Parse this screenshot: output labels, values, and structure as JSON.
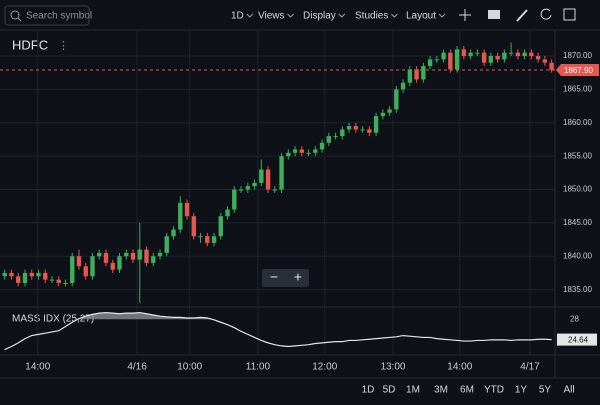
{
  "toolbar": {
    "search_placeholder": "Search symbol",
    "menus": [
      "1D",
      "Views",
      "Display",
      "Studies",
      "Layout"
    ]
  },
  "symbol": "HDFC",
  "zoom_buttons": [
    "−",
    "+"
  ],
  "ranges": [
    "1D",
    "5D",
    "1M",
    "3M",
    "6M",
    "YTD",
    "1Y",
    "5Y",
    "All"
  ],
  "chart_data": {
    "type": "candlestick",
    "ohlc": [
      [
        1837,
        1838,
        1836.5,
        1837.5
      ],
      [
        1837.5,
        1838,
        1836.5,
        1837
      ],
      [
        1837,
        1837.5,
        1835.5,
        1836
      ],
      [
        1836,
        1838,
        1835.5,
        1837.5
      ],
      [
        1837.5,
        1838,
        1836.5,
        1837
      ],
      [
        1837,
        1838,
        1836.5,
        1837.5
      ],
      [
        1837.5,
        1838,
        1836,
        1836.5
      ],
      [
        1836.5,
        1837,
        1836,
        1836.5
      ],
      [
        1836.5,
        1837,
        1835.5,
        1836
      ],
      [
        1836,
        1836.5,
        1835.5,
        1836
      ],
      [
        1836,
        1840.5,
        1835.5,
        1840
      ],
      [
        1840,
        1841,
        1838,
        1838.5
      ],
      [
        1838.5,
        1839,
        1836.5,
        1837
      ],
      [
        1837,
        1840.5,
        1836.5,
        1840
      ],
      [
        1840,
        1841,
        1839.5,
        1840.5
      ],
      [
        1840.5,
        1841,
        1838.5,
        1839
      ],
      [
        1839,
        1839.5,
        1837.5,
        1838
      ],
      [
        1838,
        1840.5,
        1837.5,
        1840
      ],
      [
        1840,
        1841,
        1839.5,
        1840.5
      ],
      [
        1840.5,
        1841,
        1839,
        1839.5
      ],
      [
        1839.5,
        1845,
        1833,
        1841
      ],
      [
        1841,
        1841.5,
        1838.5,
        1839
      ],
      [
        1839,
        1840.5,
        1838.5,
        1840
      ],
      [
        1840,
        1841,
        1839.5,
        1840.5
      ],
      [
        1840.5,
        1843.5,
        1840,
        1843
      ],
      [
        1843,
        1844.5,
        1842.5,
        1844
      ],
      [
        1844,
        1849,
        1843.5,
        1848
      ],
      [
        1848,
        1848.5,
        1845.5,
        1846
      ],
      [
        1846,
        1846.5,
        1842.5,
        1843
      ],
      [
        1843,
        1843.5,
        1842,
        1843
      ],
      [
        1843,
        1843.5,
        1841.5,
        1842
      ],
      [
        1842,
        1843.5,
        1841.5,
        1843
      ],
      [
        1843,
        1846.5,
        1842.5,
        1846
      ],
      [
        1846,
        1847.5,
        1845.5,
        1847
      ],
      [
        1847,
        1850.5,
        1846.5,
        1850
      ],
      [
        1850,
        1850.5,
        1849.5,
        1850
      ],
      [
        1850,
        1851,
        1849.5,
        1850.5
      ],
      [
        1850.5,
        1851.5,
        1850,
        1851
      ],
      [
        1851,
        1854.5,
        1850.5,
        1853
      ],
      [
        1853,
        1853.5,
        1849.5,
        1850
      ],
      [
        1850,
        1850.5,
        1849.5,
        1850
      ],
      [
        1850,
        1855.5,
        1849.5,
        1855
      ],
      [
        1855,
        1856,
        1854.5,
        1855.5
      ],
      [
        1855.5,
        1856.5,
        1855,
        1856
      ],
      [
        1856,
        1856.5,
        1855,
        1855.5
      ],
      [
        1855.5,
        1856,
        1855,
        1855.5
      ],
      [
        1855.5,
        1856.5,
        1855,
        1856
      ],
      [
        1856,
        1857.5,
        1855.5,
        1857
      ],
      [
        1857,
        1858.5,
        1856.5,
        1858
      ],
      [
        1858,
        1858.5,
        1857.5,
        1858
      ],
      [
        1858,
        1859.5,
        1857.5,
        1859
      ],
      [
        1859,
        1860,
        1858.5,
        1859.5
      ],
      [
        1859.5,
        1860,
        1858.5,
        1859
      ],
      [
        1859,
        1859.5,
        1858.5,
        1859
      ],
      [
        1859,
        1859.5,
        1858,
        1858.5
      ],
      [
        1858.5,
        1861.5,
        1858,
        1861
      ],
      [
        1861,
        1862,
        1860.5,
        1861.5
      ],
      [
        1861.5,
        1862.5,
        1861,
        1862
      ],
      [
        1862,
        1865.5,
        1861.5,
        1865
      ],
      [
        1865,
        1866.5,
        1864.5,
        1866
      ],
      [
        1866,
        1868.5,
        1865.5,
        1868
      ],
      [
        1868,
        1868.5,
        1866,
        1866.5
      ],
      [
        1866.5,
        1869,
        1866,
        1868.5
      ],
      [
        1868.5,
        1870,
        1868,
        1869.5
      ],
      [
        1869.5,
        1870,
        1869,
        1869.5
      ],
      [
        1869.5,
        1871,
        1869,
        1870.5
      ],
      [
        1870.5,
        1871,
        1867.5,
        1868
      ],
      [
        1868,
        1871.5,
        1867.5,
        1871
      ],
      [
        1871,
        1871.5,
        1869.5,
        1870
      ],
      [
        1870,
        1871,
        1869.5,
        1870.5
      ],
      [
        1870.5,
        1871,
        1870,
        1870.5
      ],
      [
        1870.5,
        1871,
        1868.5,
        1869
      ],
      [
        1869,
        1870.5,
        1868.5,
        1870
      ],
      [
        1870,
        1870.5,
        1869,
        1869.5
      ],
      [
        1869.5,
        1871,
        1869,
        1870.5
      ],
      [
        1870.5,
        1872,
        1870,
        1870.5
      ],
      [
        1870.5,
        1871,
        1869.5,
        1870
      ],
      [
        1870,
        1871,
        1869.5,
        1870.5
      ],
      [
        1870.5,
        1871,
        1869.5,
        1870
      ],
      [
        1870,
        1870.5,
        1869,
        1869.5
      ],
      [
        1869.5,
        1870,
        1868.5,
        1869
      ],
      [
        1869,
        1869.5,
        1867.5,
        1867.9
      ]
    ],
    "up_color": "#3fae5a",
    "down_color": "#e5574f",
    "ylim": [
      1832.4,
      1873.9
    ],
    "yticks": [
      {
        "value": 1835,
        "label": "1835.00"
      },
      {
        "value": 1840,
        "label": "1840.00"
      },
      {
        "value": 1845,
        "label": "1845.00"
      },
      {
        "value": 1850,
        "label": "1850.00"
      },
      {
        "value": 1855,
        "label": "1855.00"
      },
      {
        "value": 1860,
        "label": "1860.00"
      },
      {
        "value": 1865,
        "label": "1865.00"
      },
      {
        "value": 1870,
        "label": "1870.00"
      }
    ],
    "xlim": [
      -0.7,
      81.5
    ],
    "xticks": [
      {
        "value": 4.9,
        "label": "14:00"
      },
      {
        "value": 19.6,
        "label": "4/16"
      },
      {
        "value": 27.4,
        "label": "10:00"
      },
      {
        "value": 37.5,
        "label": "11:00"
      },
      {
        "value": 47.4,
        "label": "12:00"
      },
      {
        "value": 57.5,
        "label": "13:00"
      },
      {
        "value": 67.4,
        "label": "14:00"
      },
      {
        "value": 77.8,
        "label": "4/17"
      }
    ],
    "last_price_label": "1867.90",
    "grid": true,
    "study": {
      "name": "MASS IDX (25,27)",
      "color": "#e6e6e6",
      "ylim": [
        22.1,
        29.85
      ],
      "yticks": [
        28
      ],
      "last_label": "24.64",
      "values": [
        23,
        23.5,
        24.1,
        24.8,
        25.3,
        25.5,
        25.7,
        25.9,
        26.1,
        26.8,
        27.5,
        28.1,
        28.5,
        28.8,
        29,
        29.1,
        29,
        28.9,
        29,
        29,
        29.1,
        28.9,
        28.7,
        28.5,
        28.4,
        28.3,
        28.3,
        28.2,
        28.2,
        28.3,
        28.2,
        27.9,
        27.5,
        27.1,
        26.6,
        26,
        25.5,
        25,
        24.5,
        24.1,
        23.8,
        23.6,
        23.5,
        23.6,
        23.7,
        23.8,
        24,
        24.1,
        24.2,
        24.3,
        24.3,
        24.5,
        24.5,
        24.6,
        24.7,
        24.8,
        24.9,
        25,
        25.1,
        25.3,
        25.2,
        25.1,
        25,
        25,
        24.8,
        24.7,
        24.6,
        24.5,
        24.4,
        24.4,
        24.5,
        24.5,
        24.6,
        24.6,
        24.6,
        24.5,
        24.6,
        24.6,
        24.6,
        24.7,
        24.7,
        24.64
      ]
    }
  }
}
